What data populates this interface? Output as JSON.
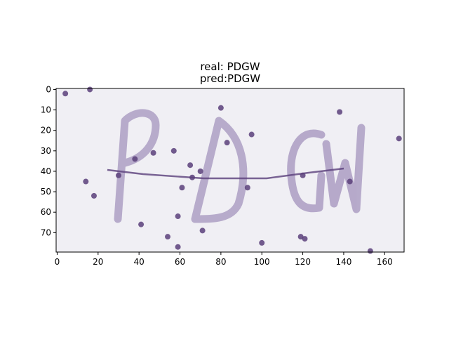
{
  "figure": {
    "title_line1": "real: PDGW",
    "title_line2": "pred:PDGW"
  },
  "chart_data": {
    "type": "image",
    "title": "real: PDGW\npred:PDGW",
    "image_content": "Captcha image with handwritten-style letters PDGW, a horizontal strike-through line and scattered noise dots",
    "real_label": "PDGW",
    "predicted_label": "PDGW",
    "xlim": [
      -0.5,
      169.5
    ],
    "ylim": [
      79.5,
      -0.5
    ],
    "y_inverted": true,
    "xticks": [
      0,
      20,
      40,
      60,
      80,
      100,
      120,
      140,
      160
    ],
    "yticks": [
      0,
      10,
      20,
      30,
      40,
      50,
      60,
      70
    ],
    "grid": false,
    "colors": {
      "background": "#f0eff4",
      "glyph": "#b3a6c8",
      "noise": "#5a3f7a"
    }
  }
}
